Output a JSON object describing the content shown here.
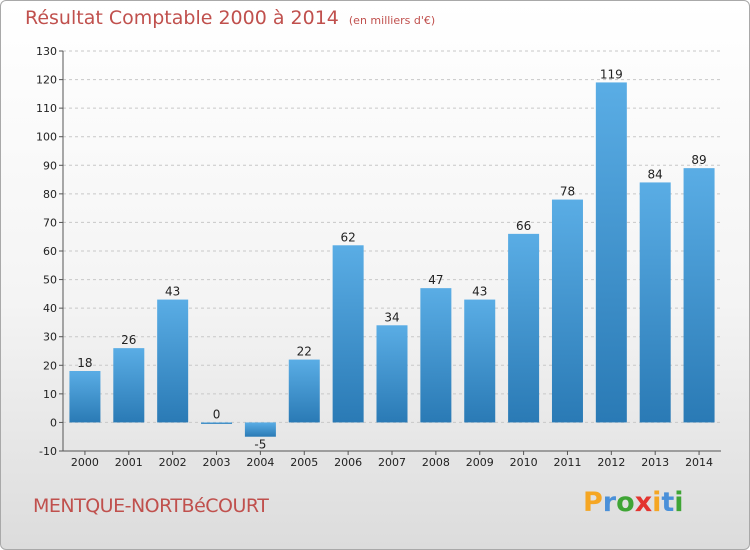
{
  "header": {
    "title": "Résultat Comptable 2000 à 2014",
    "unit": "(en milliers d'€)"
  },
  "footer": {
    "commune": "MENTQUE-NORTBéCOURT",
    "logo": {
      "letters": [
        "P",
        "r",
        "o",
        "x",
        "i",
        "t",
        "i"
      ],
      "colors": [
        "#f5a623",
        "#4a90d9",
        "#3fa535",
        "#e3342f",
        "#f5a623",
        "#4a90d9",
        "#3fa535"
      ]
    }
  },
  "chart_data": {
    "type": "bar",
    "categories": [
      "2000",
      "2001",
      "2002",
      "2003",
      "2004",
      "2005",
      "2006",
      "2007",
      "2008",
      "2009",
      "2010",
      "2011",
      "2012",
      "2013",
      "2014"
    ],
    "values": [
      18,
      26,
      43,
      0,
      -5,
      22,
      62,
      34,
      47,
      43,
      66,
      78,
      119,
      84,
      89
    ],
    "ylim": [
      -10,
      130
    ],
    "yticks": [
      -10,
      0,
      10,
      20,
      30,
      40,
      50,
      60,
      70,
      80,
      90,
      100,
      110,
      120,
      130
    ],
    "grid": "dashed-horizontal",
    "bar_color_light": "#5aade5",
    "bar_color_dark": "#2a7ab5",
    "title": "Résultat Comptable 2000 à 2014",
    "xlabel": "",
    "ylabel": ""
  }
}
